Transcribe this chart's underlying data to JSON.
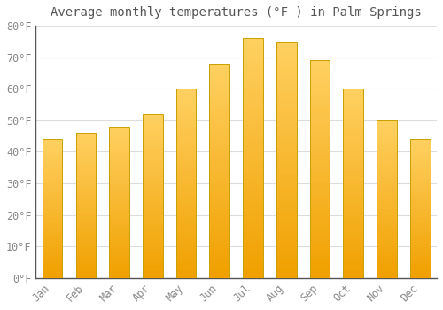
{
  "title": "Average monthly temperatures (°F ) in Palm Springs",
  "months": [
    "Jan",
    "Feb",
    "Mar",
    "Apr",
    "May",
    "Jun",
    "Jul",
    "Aug",
    "Sep",
    "Oct",
    "Nov",
    "Dec"
  ],
  "values": [
    44,
    46,
    48,
    52,
    60,
    68,
    76,
    75,
    69,
    60,
    50,
    44
  ],
  "bar_color_top": "#FFD060",
  "bar_color_bottom": "#F0A000",
  "bar_edge_color": "#C8A000",
  "background_color": "#FFFFFF",
  "grid_color": "#DDDDDD",
  "ylim": [
    0,
    80
  ],
  "yticks": [
    0,
    10,
    20,
    30,
    40,
    50,
    60,
    70,
    80
  ],
  "ytick_labels": [
    "0°F",
    "10°F",
    "20°F",
    "30°F",
    "40°F",
    "50°F",
    "60°F",
    "70°F",
    "80°F"
  ],
  "title_fontsize": 10,
  "tick_fontsize": 8.5,
  "title_color": "#555555",
  "tick_color": "#888888",
  "spine_color": "#555555"
}
